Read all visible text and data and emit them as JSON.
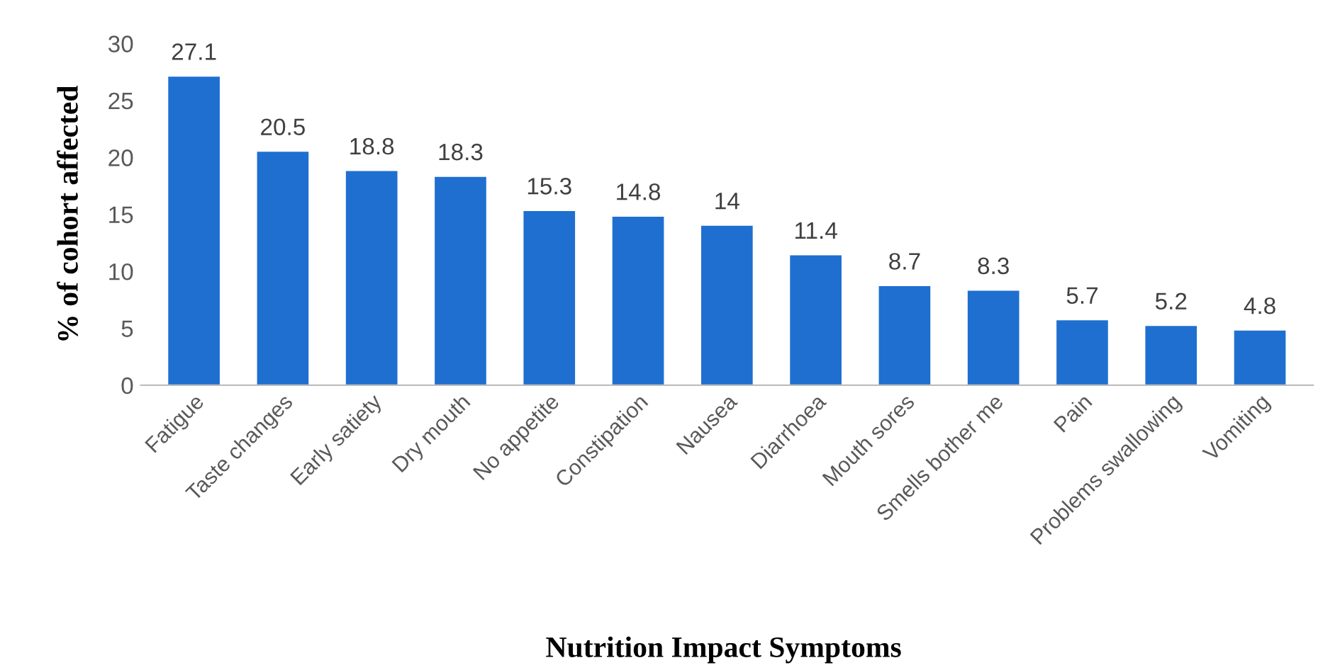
{
  "chart_data": {
    "type": "bar",
    "xlabel": "Nutrition Impact Symptoms",
    "ylabel": "% of cohort affected",
    "categories": [
      "Fatigue",
      "Taste changes",
      "Early satiety",
      "Dry mouth",
      "No appetite",
      "Constipation",
      "Nausea",
      "Diarrhoea",
      "Mouth sores",
      "Smells bother me",
      "Pain",
      "Problems swallowing",
      "Vomiting"
    ],
    "values": [
      27.1,
      20.5,
      18.8,
      18.3,
      15.3,
      14.8,
      14,
      11.4,
      8.7,
      8.3,
      5.7,
      5.2,
      4.8
    ],
    "color": "#1f6fd0",
    "ylim": [
      0,
      30
    ],
    "yticks": [
      0,
      5,
      10,
      15,
      20,
      25,
      30
    ],
    "data_labels": true,
    "grid": false,
    "legend": false
  }
}
